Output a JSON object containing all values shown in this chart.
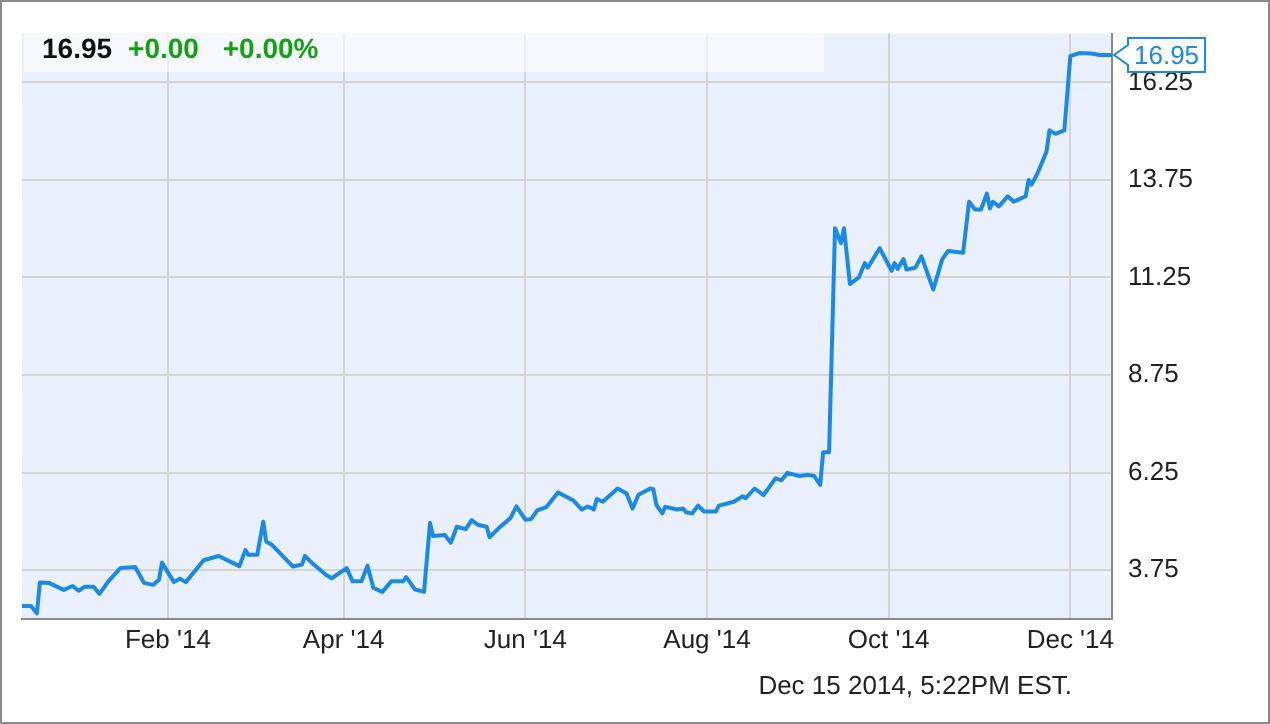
{
  "chart_data": {
    "type": "line",
    "title": "16.95",
    "subtitle": "+0.00 +0.00%",
    "x": [
      "2013-12-14",
      "2013-12-17",
      "2013-12-19",
      "2013-12-20",
      "2013-12-23",
      "2013-12-28",
      "2013-12-31",
      "2014-01-02",
      "2014-01-04",
      "2014-01-07",
      "2014-01-09",
      "2014-01-12",
      "2014-01-16",
      "2014-01-21",
      "2014-01-24",
      "2014-01-27",
      "2014-01-29",
      "2014-01-30",
      "2014-02-03",
      "2014-02-05",
      "2014-02-07",
      "2014-02-13",
      "2014-02-18",
      "2014-02-25",
      "2014-02-27",
      "2014-02-28",
      "2014-03-03",
      "2014-03-05",
      "2014-03-06",
      "2014-03-08",
      "2014-03-15",
      "2014-03-18",
      "2014-03-19",
      "2014-03-22",
      "2014-03-26",
      "2014-03-28",
      "2014-04-02",
      "2014-04-04",
      "2014-04-07",
      "2014-04-09",
      "2014-04-11",
      "2014-04-14",
      "2014-04-17",
      "2014-04-21",
      "2014-04-22",
      "2014-04-25",
      "2014-04-28",
      "2014-04-30",
      "2014-05-01",
      "2014-05-05",
      "2014-05-07",
      "2014-05-09",
      "2014-05-12",
      "2014-05-14",
      "2014-05-16",
      "2014-05-19",
      "2014-05-20",
      "2014-05-23",
      "2014-05-27",
      "2014-05-29",
      "2014-06-01",
      "2014-06-03",
      "2014-06-05",
      "2014-06-08",
      "2014-06-12",
      "2014-06-17",
      "2014-06-20",
      "2014-06-22",
      "2014-06-24",
      "2014-06-25",
      "2014-06-27",
      "2014-07-02",
      "2014-07-05",
      "2014-07-07",
      "2014-07-09",
      "2014-07-13",
      "2014-07-14",
      "2014-07-15",
      "2014-07-17",
      "2014-07-18",
      "2014-07-22",
      "2014-07-24",
      "2014-07-25",
      "2014-07-27",
      "2014-07-29",
      "2014-07-31",
      "2014-08-04",
      "2014-08-05",
      "2014-08-10",
      "2014-08-13",
      "2014-08-14",
      "2014-08-17",
      "2014-08-20",
      "2014-08-24",
      "2014-08-26",
      "2014-08-28",
      "2014-09-01",
      "2014-09-04",
      "2014-09-06",
      "2014-09-08",
      "2014-09-09",
      "2014-09-11",
      "2014-09-13",
      "2014-09-15",
      "2014-09-16",
      "2014-09-18",
      "2014-09-21",
      "2014-09-23",
      "2014-09-24",
      "2014-09-28",
      "2014-10-02",
      "2014-10-03",
      "2014-10-04",
      "2014-10-06",
      "2014-10-07",
      "2014-10-10",
      "2014-10-12",
      "2014-10-16",
      "2014-10-19",
      "2014-10-21",
      "2014-10-26",
      "2014-10-28",
      "2014-10-30",
      "2014-11-01",
      "2014-11-03",
      "2014-11-04",
      "2014-11-05",
      "2014-11-07",
      "2014-11-10",
      "2014-11-12",
      "2014-11-16",
      "2014-11-17",
      "2014-11-18",
      "2014-11-20",
      "2014-11-23",
      "2014-11-24",
      "2014-11-26",
      "2014-11-29",
      "2014-12-01",
      "2014-12-04",
      "2014-12-08",
      "2014-12-11",
      "2014-12-15"
    ],
    "series": [
      {
        "color": "#1a8ae6",
        "values": [
          2.83,
          2.83,
          2.64,
          3.43,
          3.42,
          3.24,
          3.34,
          3.22,
          3.32,
          3.32,
          3.14,
          3.46,
          3.8,
          3.83,
          3.42,
          3.37,
          3.5,
          3.94,
          3.44,
          3.53,
          3.44,
          4.0,
          4.11,
          3.85,
          4.26,
          4.14,
          4.14,
          4.99,
          4.48,
          4.39,
          3.84,
          3.89,
          4.11,
          3.89,
          3.63,
          3.54,
          3.8,
          3.46,
          3.46,
          3.86,
          3.29,
          3.19,
          3.46,
          3.46,
          3.57,
          3.25,
          3.19,
          4.96,
          4.62,
          4.65,
          4.45,
          4.86,
          4.8,
          5.03,
          4.91,
          4.86,
          4.59,
          4.82,
          5.08,
          5.38,
          5.04,
          5.06,
          5.28,
          5.36,
          5.74,
          5.54,
          5.3,
          5.38,
          5.3,
          5.57,
          5.5,
          5.84,
          5.71,
          5.33,
          5.68,
          5.84,
          5.82,
          5.42,
          5.2,
          5.37,
          5.3,
          5.33,
          5.23,
          5.2,
          5.4,
          5.25,
          5.25,
          5.4,
          5.5,
          5.64,
          5.59,
          5.84,
          5.67,
          6.1,
          6.05,
          6.24,
          6.16,
          6.19,
          6.16,
          5.93,
          6.77,
          6.77,
          12.51,
          12.13,
          12.51,
          11.08,
          11.25,
          11.62,
          11.5,
          12.0,
          11.42,
          11.62,
          11.47,
          11.72,
          11.45,
          11.5,
          11.79,
          10.94,
          11.72,
          11.93,
          11.88,
          13.19,
          12.99,
          12.99,
          13.4,
          13.02,
          13.19,
          13.07,
          13.33,
          13.19,
          13.33,
          13.75,
          13.63,
          13.92,
          14.47,
          15.02,
          14.93,
          15.02,
          16.92,
          17.0,
          16.99,
          16.95,
          16.95
        ]
      }
    ],
    "xlim": [
      "2013-12-14",
      "2014-12-15"
    ],
    "xticks": [
      {
        "value": "2014-02-01",
        "label": "Feb '14"
      },
      {
        "value": "2014-04-01",
        "label": "Apr '14"
      },
      {
        "value": "2014-06-01",
        "label": "Jun '14"
      },
      {
        "value": "2014-08-01",
        "label": "Aug '14"
      },
      {
        "value": "2014-10-01",
        "label": "Oct '14"
      },
      {
        "value": "2014-12-01",
        "label": "Dec '14"
      }
    ],
    "ylim": [
      2.5,
      17.5
    ],
    "yticks": [
      3.75,
      6.25,
      8.75,
      11.25,
      13.75,
      16.25
    ],
    "grid": true,
    "marker": "none",
    "annotations": [
      {
        "text": "16.95",
        "x": "2014-12-15",
        "y": 16.95
      },
      "Dec 15 2014, 5:22PM EST."
    ]
  }
}
